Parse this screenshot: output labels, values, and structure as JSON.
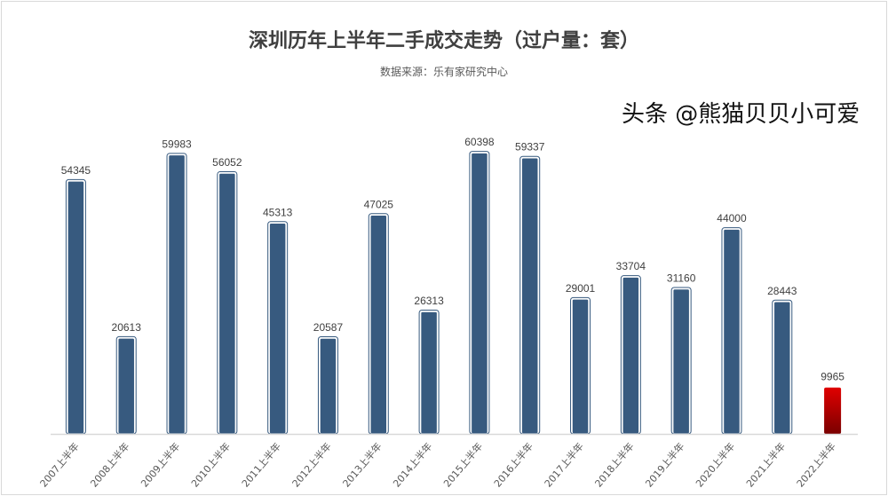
{
  "chart_data": {
    "type": "bar",
    "title": "深圳历年上半年二手成交走势（过户量：套）",
    "subtitle": "数据来源：乐有家研究中心",
    "categories": [
      "2007上半年",
      "2008上半年",
      "2009上半年",
      "2010上半年",
      "2011上半年",
      "2012上半年",
      "2013上半年",
      "2014上半年",
      "2015上半年",
      "2016上半年",
      "2017上半年",
      "2018上半年",
      "2019上半年",
      "2020上半年",
      "2021上半年",
      "2022上半年"
    ],
    "values": [
      54345,
      20613,
      59983,
      56052,
      45313,
      20587,
      47025,
      26313,
      60398,
      59337,
      29001,
      33704,
      31160,
      44000,
      28443,
      9965
    ],
    "ylim": [
      0,
      65000
    ],
    "grid": false,
    "colors": {
      "bar": "#375a7f",
      "highlight": "#e00000",
      "highlight_dark": "#7a0000"
    },
    "highlight_index": 15
  },
  "watermark": "头条 @熊猫贝贝小可爱"
}
